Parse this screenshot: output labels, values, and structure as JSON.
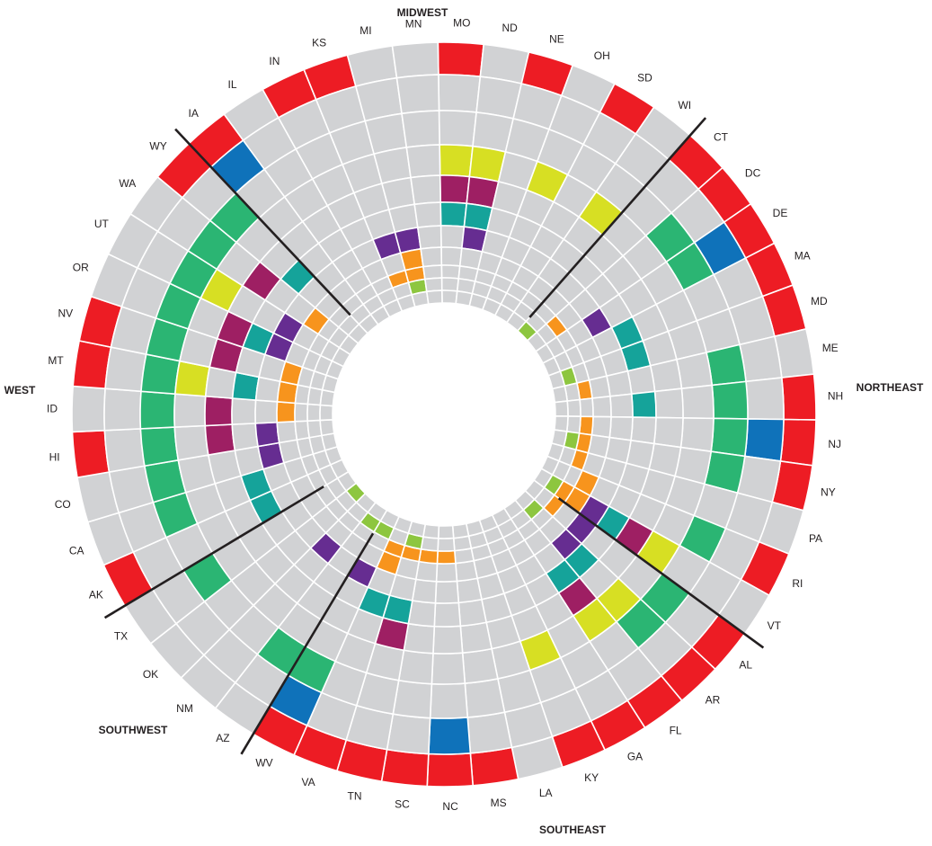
{
  "chart_data": {
    "type": "radial-grid",
    "title": "",
    "rings_count": 11,
    "ring_order": "index 0 = outermost ring, index 10 = innermost ring",
    "level_colors": {
      "0": "#d1d2d4",
      "1": "#ed1c24",
      "2": "#0f72ba",
      "3": "#2bb573",
      "4": "#d7df23",
      "5": "#9e1f63",
      "6": "#15a39a",
      "7": "#662d91",
      "8": "#f7941d",
      "9": "#8dc63f"
    },
    "ring_level": [
      1,
      2,
      3,
      4,
      5,
      6,
      7,
      8,
      8,
      9,
      9
    ],
    "states": [
      {
        "label": "MO",
        "cells": [
          1,
          0,
          0,
          1,
          1,
          1,
          0,
          0,
          0,
          0,
          0
        ]
      },
      {
        "label": "ND",
        "cells": [
          0,
          0,
          0,
          1,
          1,
          1,
          1,
          0,
          0,
          0,
          0
        ]
      },
      {
        "label": "NE",
        "cells": [
          1,
          0,
          0,
          0,
          0,
          0,
          0,
          0,
          0,
          0,
          0
        ]
      },
      {
        "label": "OH",
        "cells": [
          0,
          0,
          0,
          1,
          0,
          0,
          0,
          0,
          0,
          0,
          0
        ]
      },
      {
        "label": "SD",
        "cells": [
          1,
          0,
          0,
          0,
          0,
          0,
          0,
          0,
          0,
          0,
          0
        ]
      },
      {
        "label": "WI",
        "cells": [
          0,
          0,
          0,
          1,
          0,
          0,
          0,
          0,
          0,
          0,
          0
        ]
      },
      {
        "label": "CT",
        "cells": [
          1,
          0,
          0,
          0,
          0,
          0,
          0,
          0,
          0,
          0,
          1
        ]
      },
      {
        "label": "DC",
        "cells": [
          1,
          0,
          1,
          0,
          0,
          0,
          0,
          0,
          1,
          0,
          0
        ]
      },
      {
        "label": "DE",
        "cells": [
          1,
          1,
          1,
          0,
          0,
          0,
          1,
          0,
          0,
          0,
          0
        ]
      },
      {
        "label": "MA",
        "cells": [
          1,
          0,
          0,
          0,
          0,
          1,
          0,
          0,
          0,
          0,
          0
        ]
      },
      {
        "label": "MD",
        "cells": [
          1,
          0,
          0,
          0,
          0,
          1,
          0,
          0,
          0,
          1,
          0
        ]
      },
      {
        "label": "ME",
        "cells": [
          0,
          0,
          1,
          0,
          0,
          0,
          0,
          0,
          1,
          0,
          0
        ]
      },
      {
        "label": "NH",
        "cells": [
          1,
          0,
          1,
          0,
          0,
          1,
          0,
          0,
          0,
          0,
          0
        ]
      },
      {
        "label": "NJ",
        "cells": [
          1,
          1,
          1,
          0,
          0,
          0,
          0,
          0,
          1,
          0,
          0
        ]
      },
      {
        "label": "NY",
        "cells": [
          1,
          0,
          1,
          0,
          0,
          0,
          0,
          0,
          1,
          1,
          0
        ]
      },
      {
        "label": "PA",
        "cells": [
          0,
          0,
          0,
          0,
          0,
          0,
          0,
          0,
          1,
          0,
          0
        ]
      },
      {
        "label": "RI",
        "cells": [
          1,
          0,
          1,
          0,
          0,
          0,
          0,
          1,
          0,
          0,
          0
        ]
      },
      {
        "label": "VT",
        "cells": [
          0,
          0,
          0,
          1,
          1,
          1,
          1,
          1,
          1,
          1,
          0
        ]
      },
      {
        "label": "AL",
        "cells": [
          1,
          0,
          1,
          0,
          0,
          0,
          1,
          0,
          1,
          0,
          0
        ]
      },
      {
        "label": "AR",
        "cells": [
          1,
          0,
          1,
          1,
          0,
          1,
          1,
          0,
          0,
          1,
          0
        ]
      },
      {
        "label": "FL",
        "cells": [
          1,
          0,
          0,
          1,
          1,
          1,
          0,
          0,
          0,
          0,
          0
        ]
      },
      {
        "label": "GA",
        "cells": [
          1,
          0,
          0,
          0,
          0,
          0,
          0,
          0,
          0,
          0,
          0
        ]
      },
      {
        "label": "KY",
        "cells": [
          1,
          0,
          0,
          1,
          0,
          0,
          0,
          0,
          0,
          0,
          0
        ]
      },
      {
        "label": "LA",
        "cells": [
          0,
          0,
          0,
          0,
          0,
          0,
          0,
          0,
          0,
          0,
          0
        ]
      },
      {
        "label": "MS",
        "cells": [
          1,
          0,
          0,
          0,
          0,
          0,
          0,
          0,
          0,
          0,
          0
        ]
      },
      {
        "label": "NC",
        "cells": [
          1,
          1,
          0,
          0,
          0,
          0,
          0,
          0,
          1,
          0,
          0
        ]
      },
      {
        "label": "SC",
        "cells": [
          1,
          0,
          0,
          0,
          0,
          0,
          0,
          0,
          1,
          0,
          0
        ]
      },
      {
        "label": "TN",
        "cells": [
          1,
          0,
          0,
          0,
          1,
          1,
          0,
          0,
          1,
          1,
          0
        ]
      },
      {
        "label": "VA",
        "cells": [
          1,
          0,
          0,
          0,
          0,
          1,
          0,
          1,
          1,
          0,
          0
        ]
      },
      {
        "label": "WV",
        "cells": [
          1,
          1,
          1,
          0,
          0,
          0,
          1,
          0,
          0,
          1,
          0
        ]
      },
      {
        "label": "AZ",
        "cells": [
          0,
          0,
          1,
          0,
          0,
          0,
          0,
          0,
          0,
          1,
          0
        ]
      },
      {
        "label": "NM",
        "cells": [
          0,
          0,
          0,
          0,
          0,
          0,
          1,
          0,
          0,
          0,
          0
        ]
      },
      {
        "label": "OK",
        "cells": [
          0,
          0,
          0,
          0,
          0,
          0,
          0,
          0,
          0,
          0,
          1
        ]
      },
      {
        "label": "TX",
        "cells": [
          0,
          0,
          1,
          0,
          0,
          0,
          0,
          0,
          0,
          0,
          0
        ]
      },
      {
        "label": "AK",
        "cells": [
          1,
          0,
          0,
          0,
          0,
          1,
          0,
          0,
          0,
          0,
          0
        ]
      },
      {
        "label": "CA",
        "cells": [
          0,
          0,
          1,
          0,
          0,
          1,
          0,
          0,
          0,
          0,
          0
        ]
      },
      {
        "label": "CO",
        "cells": [
          0,
          0,
          1,
          0,
          0,
          0,
          1,
          0,
          0,
          0,
          0
        ]
      },
      {
        "label": "HI",
        "cells": [
          1,
          0,
          1,
          0,
          1,
          0,
          1,
          0,
          0,
          0,
          0
        ]
      },
      {
        "label": "ID",
        "cells": [
          0,
          0,
          1,
          0,
          1,
          0,
          0,
          1,
          0,
          0,
          0
        ]
      },
      {
        "label": "MT",
        "cells": [
          1,
          0,
          1,
          1,
          0,
          1,
          0,
          1,
          0,
          0,
          0
        ]
      },
      {
        "label": "NV",
        "cells": [
          1,
          0,
          1,
          0,
          1,
          0,
          0,
          1,
          0,
          0,
          0
        ]
      },
      {
        "label": "OR",
        "cells": [
          0,
          0,
          1,
          0,
          1,
          1,
          1,
          0,
          0,
          0,
          0
        ]
      },
      {
        "label": "UT",
        "cells": [
          0,
          0,
          1,
          1,
          0,
          0,
          1,
          0,
          0,
          0,
          0
        ]
      },
      {
        "label": "WA",
        "cells": [
          0,
          0,
          1,
          0,
          1,
          0,
          0,
          1,
          0,
          0,
          0
        ]
      },
      {
        "label": "WY",
        "cells": [
          1,
          0,
          1,
          0,
          0,
          1,
          0,
          0,
          0,
          0,
          0
        ]
      },
      {
        "label": "IA",
        "cells": [
          1,
          1,
          0,
          0,
          0,
          0,
          0,
          0,
          0,
          0,
          0
        ]
      },
      {
        "label": "IL",
        "cells": [
          0,
          0,
          0,
          0,
          0,
          0,
          0,
          0,
          0,
          0,
          0
        ]
      },
      {
        "label": "IN",
        "cells": [
          1,
          0,
          0,
          0,
          0,
          0,
          0,
          0,
          0,
          0,
          0
        ]
      },
      {
        "label": "KS",
        "cells": [
          1,
          0,
          0,
          0,
          0,
          0,
          1,
          0,
          1,
          0,
          0
        ]
      },
      {
        "label": "MI",
        "cells": [
          0,
          0,
          0,
          0,
          0,
          0,
          1,
          1,
          1,
          1,
          0
        ]
      },
      {
        "label": "MN",
        "cells": [
          0,
          0,
          0,
          0,
          0,
          0,
          0,
          0,
          0,
          0,
          0
        ]
      }
    ],
    "regions": [
      {
        "name": "MIDWEST"
      },
      {
        "name": "NORTHEAST"
      },
      {
        "name": "SOUTHEAST"
      },
      {
        "name": "SOUTHWEST"
      },
      {
        "name": "WEST"
      }
    ]
  }
}
